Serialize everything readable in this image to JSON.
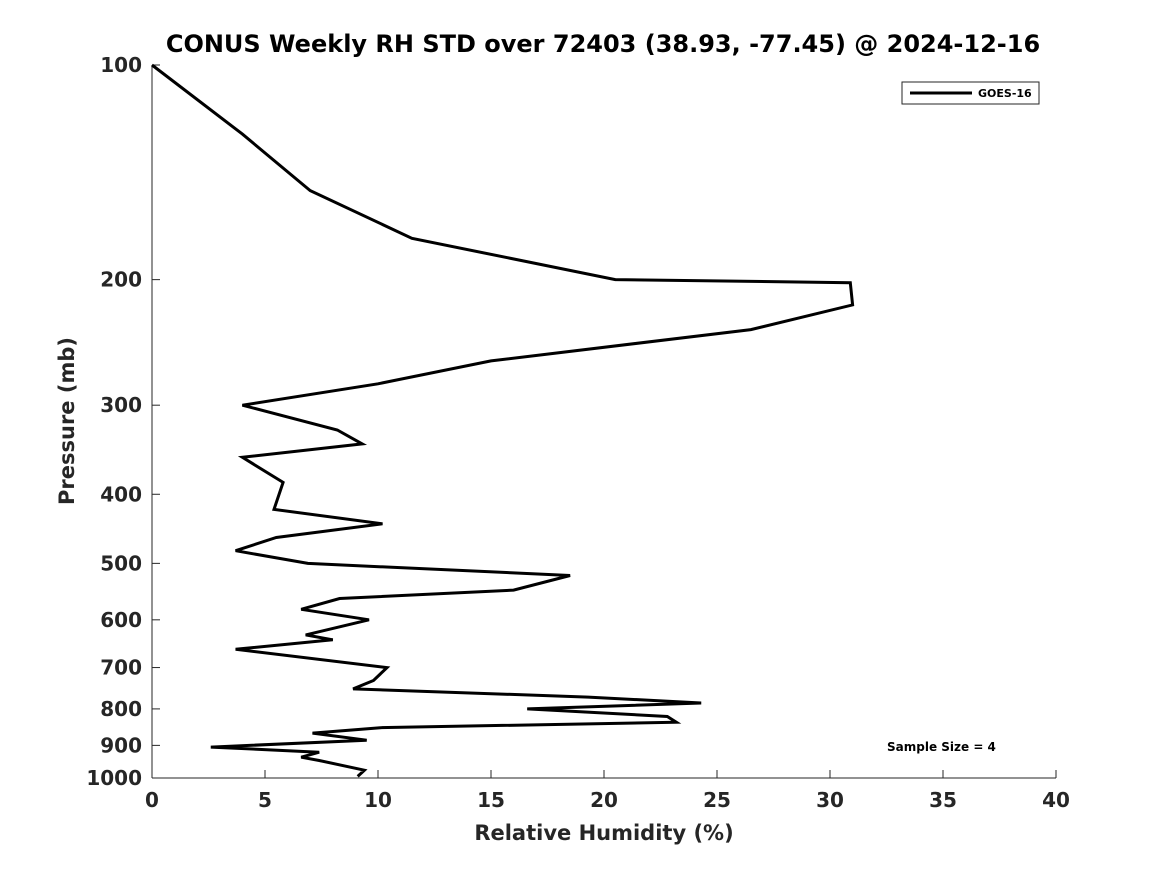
{
  "chart_data": {
    "type": "line",
    "title": "CONUS Weekly RH STD over 72403 (38.93, -77.45) @ 2024-12-16",
    "xlabel": "Relative Humidity (%)",
    "ylabel": "Pressure (mb)",
    "xlim": [
      0,
      40
    ],
    "ylim": [
      100,
      1000
    ],
    "yscale": "log",
    "y_reversed": true,
    "x_ticks": [
      0,
      5,
      10,
      15,
      20,
      25,
      30,
      35,
      40
    ],
    "y_ticks": [
      100,
      200,
      300,
      400,
      500,
      600,
      700,
      800,
      900,
      1000
    ],
    "grid": false,
    "legend_position": "top-right",
    "series": [
      {
        "name": "GOES-16",
        "color": "#000000",
        "x": [
          0,
          4,
          7,
          11.5,
          20.5,
          30.9,
          31,
          26.5,
          15,
          10,
          4,
          8.2,
          9.3,
          4,
          5.8,
          5.4,
          10.2,
          5.5,
          3.7,
          6.9,
          18.5,
          16,
          8.3,
          6.6,
          9.6,
          6.8,
          8,
          3.7,
          10.4,
          9.8,
          8.9,
          19.3,
          24.3,
          16.6,
          22.8,
          23.2,
          10.1,
          7.1,
          9.5,
          2.6,
          7.4,
          6.6,
          7.4,
          9.4,
          9.1
        ],
        "y": [
          100,
          125,
          150,
          175,
          200,
          202,
          217,
          235,
          260,
          280,
          300,
          325,
          340,
          355,
          385,
          420,
          440,
          460,
          480,
          500,
          520,
          545,
          560,
          580,
          600,
          630,
          640,
          660,
          700,
          730,
          750,
          770,
          785,
          800,
          820,
          835,
          850,
          865,
          885,
          905,
          920,
          935,
          945,
          975,
          995
        ]
      }
    ],
    "annotations": [
      "Sample Size = 4"
    ]
  }
}
